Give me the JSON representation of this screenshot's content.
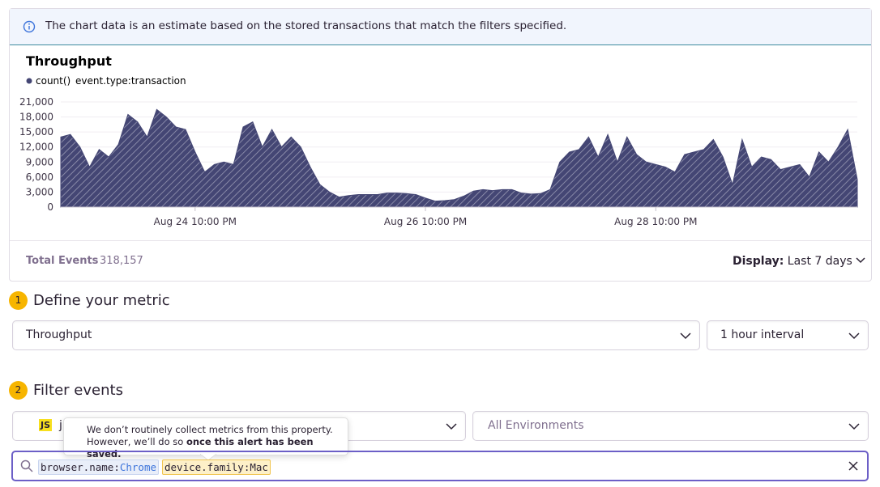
{
  "notice": "The chart data is an estimate based on the stored transactions that match the filters specified.",
  "chart_data": {
    "type": "area",
    "title": "Throughput",
    "subtitle": "event.type:transaction",
    "categories": [
      null,
      null,
      null,
      null,
      null,
      null,
      null,
      null,
      null,
      null,
      null,
      null,
      null,
      null,
      "Aug 24 10:00 PM",
      null,
      null,
      null,
      null,
      null,
      null,
      null,
      null,
      null,
      null,
      null,
      null,
      null,
      null,
      null,
      null,
      null,
      null,
      null,
      null,
      null,
      null,
      null,
      "Aug 26 10:00 PM",
      null,
      null,
      null,
      null,
      null,
      null,
      null,
      null,
      null,
      null,
      null,
      null,
      null,
      null,
      null,
      null,
      null,
      null,
      null,
      null,
      null,
      null,
      null,
      "Aug 28 10:00 PM",
      null,
      null,
      null,
      null,
      null,
      null,
      null,
      null,
      null,
      null,
      null,
      null,
      null,
      null,
      null,
      null,
      null,
      null,
      null,
      null,
      null
    ],
    "series": [
      {
        "name": "count()",
        "color": "#444674",
        "values": [
          14000,
          14500,
          12000,
          8000,
          11500,
          10000,
          12500,
          18500,
          17000,
          14000,
          19500,
          18000,
          16000,
          15500,
          11000,
          7000,
          8500,
          9000,
          8500,
          16000,
          17000,
          12000,
          15500,
          12000,
          14000,
          12000,
          8000,
          4500,
          3000,
          2000,
          2300,
          2500,
          2500,
          2500,
          2800,
          2800,
          2700,
          2500,
          1800,
          1200,
          1300,
          1500,
          2200,
          3200,
          3500,
          3300,
          3500,
          3500,
          2800,
          2600,
          2700,
          3500,
          9000,
          11000,
          11500,
          14000,
          10000,
          14500,
          9000,
          14000,
          10500,
          9000,
          8500,
          8000,
          7000,
          10500,
          11000,
          11500,
          13500,
          10000,
          4500,
          13500,
          8000,
          10000,
          9500,
          7500,
          8000,
          8500,
          6000,
          11000,
          9000,
          12000,
          15500,
          5500
        ]
      }
    ],
    "ylim": [
      0,
      21000
    ],
    "yticks": [
      0,
      {
        "value": 3000,
        "label": "3,000"
      },
      {
        "value": 6000,
        "label": "6,000"
      },
      {
        "value": 9000,
        "label": "9,000"
      },
      {
        "value": 12000,
        "label": "12,000"
      },
      {
        "value": 15000,
        "label": "15,000"
      },
      {
        "value": 18000,
        "label": "18,000"
      },
      {
        "value": 21000,
        "label": "21,000"
      }
    ],
    "grid": true
  },
  "footer": {
    "total_label": "Total Events",
    "total_value": "318,157",
    "display_label": "Display:",
    "display_value": "Last 7 days"
  },
  "step1": {
    "number": "1",
    "title": "Define your metric",
    "metric": "Throughput",
    "interval": "1 hour interval"
  },
  "step2": {
    "number": "2",
    "title": "Filter events",
    "project_badge": "JS",
    "project": "j",
    "environment": "All Environments"
  },
  "tooltip": {
    "line1": "We don’t routinely collect metrics from this property.",
    "line2": "However, we’ll do so ",
    "line2_bold": "once this alert has been saved."
  },
  "search": {
    "tokens": [
      {
        "key": "browser.name",
        "sep": ":",
        "value": "Chrome"
      },
      {
        "key": "device.family",
        "sep": ":",
        "value": "Mac"
      }
    ]
  }
}
